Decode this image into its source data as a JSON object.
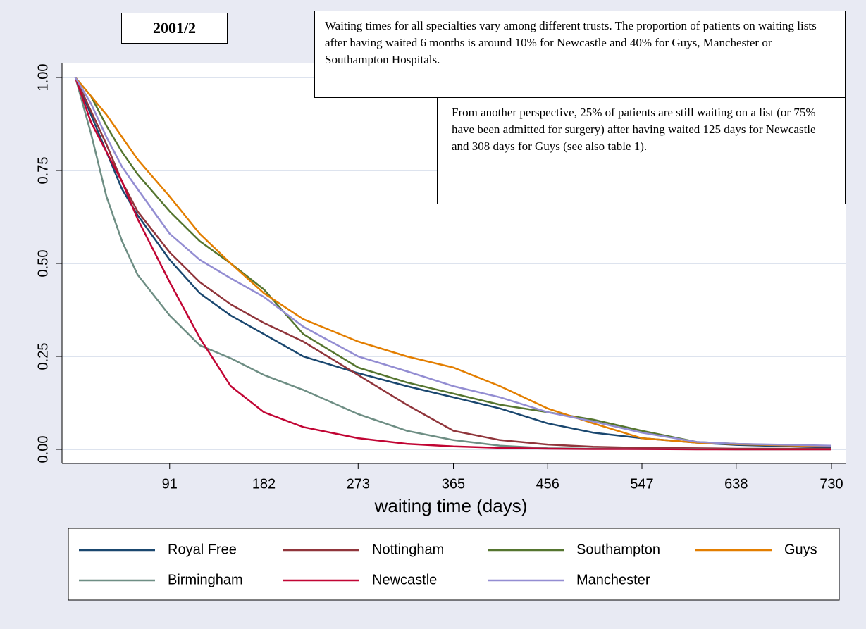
{
  "chart_data": {
    "type": "line",
    "title": "2001/2",
    "annotations": [
      "Waiting times for all specialties vary among different trusts. The proportion of patients on waiting lists after having waited 6 months is around 10% for Newcastle and 40% for Guys, Manchester or Southampton Hospitals.",
      "From another perspective, 25% of patients are still waiting on a list (or 75% have been admitted for surgery) after having waited 125 days for Newcastle and 308 days for Guys (see also table 1)."
    ],
    "x_label": "waiting time (days)",
    "x": [
      0,
      15,
      30,
      45,
      60,
      91,
      120,
      150,
      182,
      220,
      273,
      320,
      365,
      410,
      456,
      500,
      547,
      600,
      638,
      730
    ],
    "series": [
      {
        "name": "Royal Free",
        "color": "#1a476f",
        "values": [
          1,
          0.9,
          0.8,
          0.7,
          0.63,
          0.51,
          0.42,
          0.36,
          0.31,
          0.25,
          0.205,
          0.17,
          0.14,
          0.11,
          0.07,
          0.045,
          0.03,
          0.018,
          0.012,
          0.005
        ]
      },
      {
        "name": "Nottingham",
        "color": "#90353b",
        "values": [
          1,
          0.91,
          0.82,
          0.72,
          0.64,
          0.53,
          0.45,
          0.39,
          0.34,
          0.29,
          0.2,
          0.12,
          0.05,
          0.025,
          0.013,
          0.007,
          0.004,
          0.003,
          0.002,
          0.002
        ]
      },
      {
        "name": "Southampton",
        "color": "#55752f",
        "values": [
          1,
          0.95,
          0.87,
          0.8,
          0.74,
          0.64,
          0.56,
          0.5,
          0.43,
          0.31,
          0.22,
          0.18,
          0.15,
          0.12,
          0.1,
          0.08,
          0.05,
          0.02,
          0.015,
          0.008
        ]
      },
      {
        "name": "Guys",
        "color": "#e37e00",
        "values": [
          1,
          0.95,
          0.9,
          0.84,
          0.78,
          0.68,
          0.58,
          0.5,
          0.42,
          0.35,
          0.29,
          0.25,
          0.22,
          0.17,
          0.11,
          0.07,
          0.03,
          0.018,
          0.014,
          0.008
        ]
      },
      {
        "name": "Birmingham",
        "color": "#6e8e84",
        "values": [
          1,
          0.85,
          0.68,
          0.56,
          0.47,
          0.36,
          0.28,
          0.245,
          0.2,
          0.16,
          0.095,
          0.05,
          0.025,
          0.01,
          0.003,
          0.002,
          0.001,
          0.001,
          0,
          0
        ]
      },
      {
        "name": "Newcastle",
        "color": "#c10534",
        "values": [
          1,
          0.88,
          0.8,
          0.72,
          0.62,
          0.45,
          0.3,
          0.17,
          0.1,
          0.06,
          0.03,
          0.015,
          0.008,
          0.004,
          0.002,
          0.001,
          0.001,
          0,
          0,
          0
        ]
      },
      {
        "name": "Manchester",
        "color": "#938dd2",
        "values": [
          1,
          0.93,
          0.84,
          0.76,
          0.7,
          0.58,
          0.51,
          0.46,
          0.41,
          0.33,
          0.25,
          0.21,
          0.17,
          0.14,
          0.1,
          0.075,
          0.045,
          0.02,
          0.015,
          0.01
        ]
      }
    ],
    "xlim": [
      0,
      730
    ],
    "xticks": [
      91,
      182,
      273,
      365,
      456,
      547,
      638,
      730
    ],
    "ylim": [
      0,
      1
    ],
    "yticks": [
      {
        "value": 0,
        "label": "0.00"
      },
      {
        "value": 0.25,
        "label": "0.25"
      },
      {
        "value": 0.5,
        "label": "0.50"
      },
      {
        "value": 0.75,
        "label": "0.75"
      },
      {
        "value": 1,
        "label": "1.00"
      }
    ],
    "grid": true,
    "legend": "bottom"
  }
}
